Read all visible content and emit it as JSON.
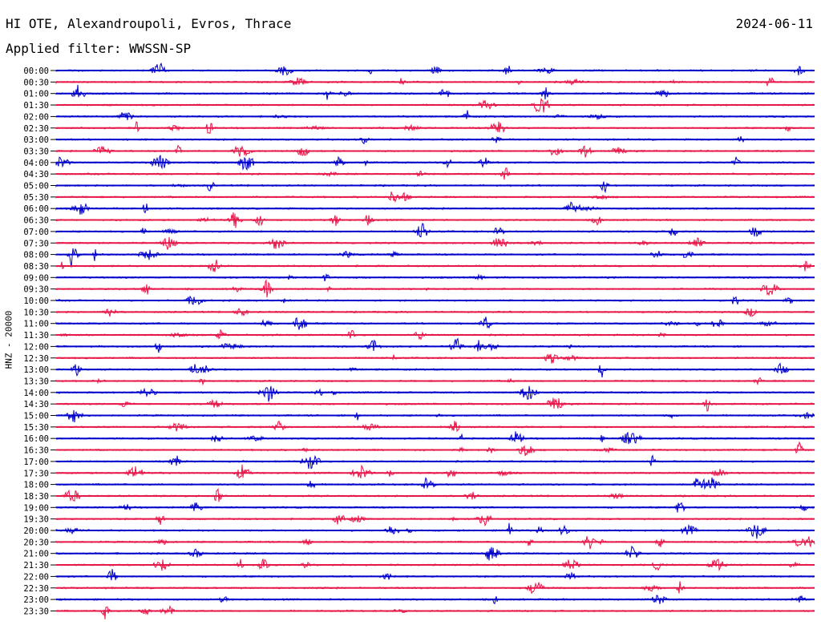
{
  "header": {
    "station": "HI OTE, Alexandroupoli, Evros, Thrace",
    "date": "2024-06-11",
    "filter": "Applied filter: WWSSN-SP"
  },
  "chart_data": {
    "type": "line",
    "title": "HI OTE, Alexandroupoli, Evros, Thrace",
    "ylabel": "HNZ - 20000",
    "y_ticks": [
      "00:00",
      "00:30",
      "01:00",
      "01:30",
      "02:00",
      "02:30",
      "03:00",
      "03:30",
      "04:00",
      "04:30",
      "05:00",
      "05:30",
      "06:00",
      "06:30",
      "07:00",
      "07:30",
      "08:00",
      "08:30",
      "09:00",
      "09:30",
      "10:00",
      "10:30",
      "11:00",
      "11:30",
      "12:00",
      "12:30",
      "13:00",
      "13:30",
      "14:00",
      "14:30",
      "15:00",
      "15:30",
      "16:00",
      "16:30",
      "17:00",
      "17:30",
      "18:00",
      "18:30",
      "19:00",
      "19:30",
      "20:00",
      "20:30",
      "21:00",
      "21:30",
      "22:00",
      "22:30",
      "23:00",
      "23:30"
    ],
    "colors": [
      "#0000cc",
      "#e8174a"
    ],
    "grid": false
  }
}
